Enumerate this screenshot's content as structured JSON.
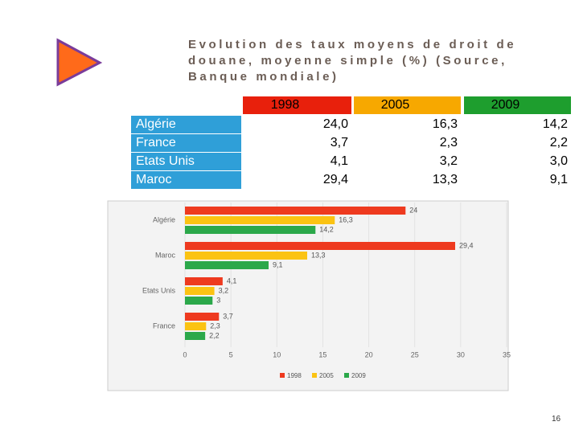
{
  "title": "Evolution des taux moyens de droit de douane, moyenne simple (%) (Source, Banque mondiale)",
  "table": {
    "header": [
      "1998",
      "2005",
      "2009"
    ],
    "header_colors": [
      "#e8200c",
      "#f7a800",
      "#1e9e2e"
    ],
    "rows": [
      [
        "Algérie",
        "24,0",
        "16,3",
        "14,2"
      ],
      [
        "France",
        "3,7",
        "2,3",
        "2,2"
      ],
      [
        "Etats Unis",
        "4,1",
        "3,2",
        "3,0"
      ],
      [
        "Maroc",
        "29,4",
        "13,3",
        "9,1"
      ]
    ]
  },
  "chart_data": {
    "type": "hbar",
    "categories": [
      "Algérie",
      "Maroc",
      "Etats Unis",
      "France"
    ],
    "series": [
      {
        "name": "1998",
        "color": "#ee3a1f",
        "values": [
          24,
          29.4,
          4.1,
          3.7
        ],
        "value_labels": [
          "24",
          "29,4",
          "4,1",
          "3,7"
        ]
      },
      {
        "name": "2005",
        "color": "#fbc313",
        "values": [
          16.3,
          13.3,
          3.2,
          2.3
        ],
        "value_labels": [
          "16,3",
          "13,3",
          "3,2",
          "2,3"
        ]
      },
      {
        "name": "2009",
        "color": "#2ba84a",
        "values": [
          14.2,
          9.1,
          3,
          2.2
        ],
        "value_labels": [
          "14,2",
          "9,1",
          "3",
          "2,2"
        ]
      }
    ],
    "xlim": [
      0,
      35
    ],
    "xticks": [
      0,
      5,
      10,
      15,
      20,
      25,
      30,
      35
    ],
    "grid": true
  },
  "page_number": "16"
}
